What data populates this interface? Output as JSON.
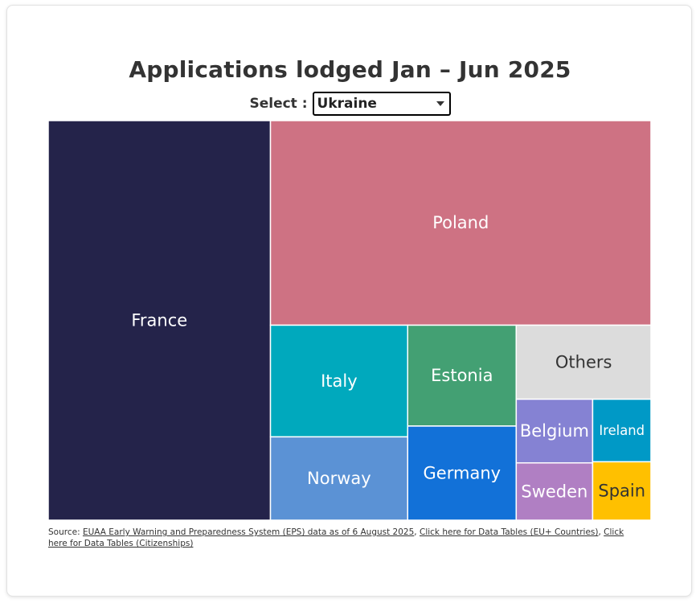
{
  "title": "Applications lodged Jan – Jun 2025",
  "selector": {
    "label": "Select :",
    "selected": "Ukraine"
  },
  "chart_data": {
    "type": "treemap",
    "title": "Applications lodged Jan – Jun 2025",
    "subset": "Ukraine",
    "items": [
      {
        "name": "France",
        "share": 36.5,
        "color": "#24234A",
        "text_color": "#ffffff"
      },
      {
        "name": "Poland",
        "share": 32.0,
        "color": "#CE7283",
        "text_color": "#ffffff"
      },
      {
        "name": "Italy",
        "share": 6.3,
        "color": "#00A9BD",
        "text_color": "#ffffff"
      },
      {
        "name": "Norway",
        "share": 4.7,
        "color": "#5B92D5",
        "text_color": "#ffffff"
      },
      {
        "name": "Estonia",
        "share": 4.5,
        "color": "#43A073",
        "text_color": "#ffffff"
      },
      {
        "name": "Germany",
        "share": 4.2,
        "color": "#1271D8",
        "text_color": "#ffffff"
      },
      {
        "name": "Others",
        "share": 4.1,
        "color": "#DCDCDC",
        "text_color": "#333333"
      },
      {
        "name": "Belgium",
        "share": 2.0,
        "color": "#8582D3",
        "text_color": "#ffffff"
      },
      {
        "name": "Sweden",
        "share": 1.8,
        "color": "#B07FC3",
        "text_color": "#ffffff"
      },
      {
        "name": "Ireland",
        "share": 1.5,
        "color": "#0099C6",
        "text_color": "#ffffff"
      },
      {
        "name": "Spain",
        "share": 1.4,
        "color": "#FFC000",
        "text_color": "#333333"
      }
    ]
  },
  "source": {
    "prefix": "Source: ",
    "link1": "EUAA Early Warning and Preparedness System (EPS) data as of 6 August 2025",
    "sep1": ", ",
    "link2": "Click here for Data Tables (EU+ Countries)",
    "sep2": ", ",
    "link3": "Click here for Data Tables (Citizenships)"
  }
}
